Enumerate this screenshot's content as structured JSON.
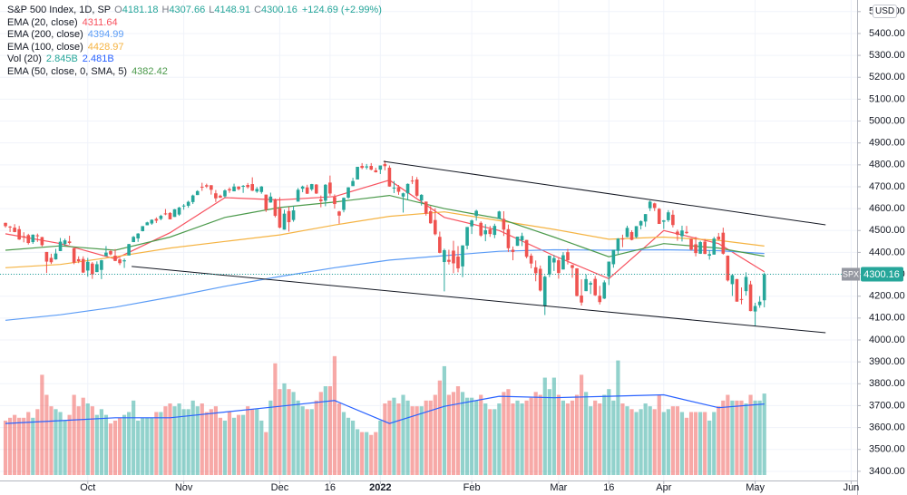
{
  "chart_data": {
    "type": "candlestick",
    "legend": {
      "title": "S&P 500 Index, 1D, SP",
      "o": "O",
      "h": "H",
      "l": "L",
      "c": "C",
      "change": "+124.69 (+2.99%)"
    },
    "symbol": "SPX",
    "currency": "USD",
    "up_color": "#26a69a",
    "down_color": "#ef5350",
    "grid": true,
    "xlim": [
      -1.2,
      186.3
    ],
    "ylim": [
      3358,
      5553
    ],
    "volume_lim": [
      0,
      5
    ],
    "xticks": [
      {
        "value": 18,
        "label": "Oct"
      },
      {
        "value": 39,
        "label": "Nov"
      },
      {
        "value": 60,
        "label": "Dec"
      },
      {
        "value": 71,
        "label": "16"
      },
      {
        "value": 82,
        "label": "2022"
      },
      {
        "value": 102,
        "label": "Feb"
      },
      {
        "value": 121,
        "label": "Mar"
      },
      {
        "value": 132,
        "label": "16"
      },
      {
        "value": 144,
        "label": "Apr"
      },
      {
        "value": 164,
        "label": "May"
      },
      {
        "value": 185,
        "label": "Jun"
      }
    ],
    "yticks": [
      {
        "value": 3400,
        "label": "3400.00"
      },
      {
        "value": 3500,
        "label": "3500.00"
      },
      {
        "value": 3600,
        "label": "3600.00"
      },
      {
        "value": 3700,
        "label": "3700.00"
      },
      {
        "value": 3800,
        "label": "3800.00"
      },
      {
        "value": 3900,
        "label": "3900.00"
      },
      {
        "value": 4000,
        "label": "4000.00"
      },
      {
        "value": 4100,
        "label": "4100.00"
      },
      {
        "value": 4200,
        "label": "4200.00"
      },
      {
        "value": 4300,
        "label": "4300.00"
      },
      {
        "value": 4400,
        "label": "4400.00"
      },
      {
        "value": 4500,
        "label": "4500.00"
      },
      {
        "value": 4600,
        "label": "4600.00"
      },
      {
        "value": 4700,
        "label": "4700.00"
      },
      {
        "value": 4800,
        "label": "4800.00"
      },
      {
        "value": 4900,
        "label": "4900.00"
      },
      {
        "value": 5000,
        "label": "5000.00"
      },
      {
        "value": 5100,
        "label": "5100.00"
      },
      {
        "value": 5200,
        "label": "5200.00"
      },
      {
        "value": 5300,
        "label": "5300.00"
      },
      {
        "value": 5400,
        "label": "5400.00"
      },
      {
        "value": 5500,
        "label": "5500.00"
      }
    ],
    "ohlc": [
      [
        4535,
        4536,
        4513,
        4520
      ],
      [
        4518,
        4521,
        4493,
        4514
      ],
      [
        4513,
        4529,
        4492,
        4493
      ],
      [
        4506,
        4521,
        4457,
        4459
      ],
      [
        4474,
        4492,
        4446,
        4469
      ],
      [
        4479,
        4485,
        4436,
        4443
      ],
      [
        4447,
        4482,
        4439,
        4481
      ],
      [
        4478,
        4486,
        4448,
        4474
      ],
      [
        4470,
        4471,
        4427,
        4433
      ],
      [
        4402,
        4402,
        4306,
        4358
      ],
      [
        4375,
        4394,
        4347,
        4355
      ],
      [
        4368,
        4416,
        4367,
        4395
      ],
      [
        4406,
        4466,
        4406,
        4449
      ],
      [
        4438,
        4463,
        4430,
        4455
      ],
      [
        4450,
        4476,
        4436,
        4443
      ],
      [
        4419,
        4419,
        4346,
        4353
      ],
      [
        4369,
        4382,
        4351,
        4360
      ],
      [
        4370,
        4382,
        4306,
        4308
      ],
      [
        4317,
        4375,
        4289,
        4357
      ],
      [
        4349,
        4356,
        4279,
        4300
      ],
      [
        4310,
        4359,
        4310,
        4346
      ],
      [
        4320,
        4366,
        4278,
        4364
      ],
      [
        4383,
        4429,
        4383,
        4399
      ],
      [
        4406,
        4412,
        4386,
        4391
      ],
      [
        4385,
        4415,
        4360,
        4361
      ],
      [
        4368,
        4375,
        4342,
        4351
      ],
      [
        4359,
        4372,
        4329,
        4364
      ],
      [
        4386,
        4439,
        4386,
        4438
      ],
      [
        4447,
        4475,
        4447,
        4471
      ],
      [
        4464,
        4488,
        4448,
        4486
      ],
      [
        4497,
        4520,
        4496,
        4520
      ],
      [
        4524,
        4540,
        4524,
        4537
      ],
      [
        4532,
        4551,
        4526,
        4549
      ],
      [
        4553,
        4560,
        4534,
        4545
      ],
      [
        4553,
        4572,
        4547,
        4567
      ],
      [
        4578,
        4598,
        4570,
        4575
      ],
      [
        4580,
        4584,
        4551,
        4551
      ],
      [
        4562,
        4598,
        4562,
        4597
      ],
      [
        4573,
        4608,
        4567,
        4605
      ],
      [
        4611,
        4621,
        4595,
        4614
      ],
      [
        4613,
        4636,
        4604,
        4631
      ],
      [
        4630,
        4664,
        4621,
        4660
      ],
      [
        4662,
        4684,
        4662,
        4680
      ],
      [
        4700,
        4718,
        4681,
        4697
      ],
      [
        4707,
        4714,
        4694,
        4701
      ],
      [
        4707,
        4707,
        4664,
        4686
      ],
      [
        4670,
        4685,
        4630,
        4647
      ],
      [
        4659,
        4664,
        4648,
        4650
      ],
      [
        4656,
        4688,
        4650,
        4683
      ],
      [
        4689,
        4697,
        4672,
        4683
      ],
      [
        4679,
        4714,
        4679,
        4701
      ],
      [
        4701,
        4702,
        4684,
        4689
      ],
      [
        4700,
        4708,
        4672,
        4704
      ],
      [
        4708,
        4717,
        4691,
        4698
      ],
      [
        4712,
        4743,
        4680,
        4682
      ],
      [
        4678,
        4699,
        4672,
        4690
      ],
      [
        4676,
        4703,
        4668,
        4701
      ],
      [
        4664,
        4664,
        4585,
        4595
      ],
      [
        4628,
        4673,
        4627,
        4655
      ],
      [
        4640,
        4646,
        4560,
        4567
      ],
      [
        4602,
        4652,
        4510,
        4513
      ],
      [
        4504,
        4595,
        4504,
        4577
      ],
      [
        4589,
        4608,
        4495,
        4538
      ],
      [
        4548,
        4612,
        4540,
        4592
      ],
      [
        4632,
        4694,
        4632,
        4686
      ],
      [
        4691,
        4705,
        4675,
        4701
      ],
      [
        4697,
        4709,
        4667,
        4668
      ],
      [
        4688,
        4713,
        4681,
        4712
      ],
      [
        4710,
        4712,
        4667,
        4669
      ],
      [
        4642,
        4660,
        4606,
        4634
      ],
      [
        4636,
        4712,
        4611,
        4709
      ],
      [
        4719,
        4751,
        4659,
        4669
      ],
      [
        4653,
        4665,
        4600,
        4621
      ],
      [
        4587,
        4590,
        4531,
        4568
      ],
      [
        4594,
        4651,
        4583,
        4649
      ],
      [
        4650,
        4698,
        4645,
        4697
      ],
      [
        4703,
        4741,
        4703,
        4726
      ],
      [
        4733,
        4791,
        4733,
        4791
      ],
      [
        4795,
        4808,
        4780,
        4786
      ],
      [
        4788,
        4804,
        4779,
        4793
      ],
      [
        4795,
        4808,
        4775,
        4778
      ],
      [
        4775,
        4787,
        4765,
        4766
      ],
      [
        4778,
        4797,
        4758,
        4797
      ],
      [
        4804,
        4819,
        4775,
        4794
      ],
      [
        4787,
        4797,
        4700,
        4701
      ],
      [
        4693,
        4726,
        4671,
        4696
      ],
      [
        4698,
        4708,
        4663,
        4677
      ],
      [
        4655,
        4673,
        4582,
        4670
      ],
      [
        4670,
        4715,
        4638,
        4713
      ],
      [
        4728,
        4749,
        4712,
        4726
      ],
      [
        4733,
        4744,
        4653,
        4659
      ],
      [
        4637,
        4666,
        4614,
        4663
      ],
      [
        4632,
        4632,
        4568,
        4577
      ],
      [
        4588,
        4612,
        4531,
        4533
      ],
      [
        4548,
        4602,
        4478,
        4483
      ],
      [
        4471,
        4495,
        4396,
        4398
      ],
      [
        4356,
        4417,
        4222,
        4410
      ],
      [
        4366,
        4412,
        4345,
        4357
      ],
      [
        4408,
        4453,
        4305,
        4350
      ],
      [
        4381,
        4429,
        4309,
        4327
      ],
      [
        4336,
        4432,
        4287,
        4432
      ],
      [
        4431,
        4516,
        4414,
        4516
      ],
      [
        4519,
        4550,
        4484,
        4546
      ],
      [
        4567,
        4595,
        4545,
        4590
      ],
      [
        4535,
        4542,
        4471,
        4477
      ],
      [
        4483,
        4529,
        4451,
        4501
      ],
      [
        4505,
        4521,
        4471,
        4484
      ],
      [
        4480,
        4531,
        4465,
        4521
      ],
      [
        4553,
        4590,
        4553,
        4587
      ],
      [
        4553,
        4588,
        4475,
        4504
      ],
      [
        4506,
        4527,
        4402,
        4419
      ],
      [
        4412,
        4427,
        4364,
        4402
      ],
      [
        4430,
        4472,
        4430,
        4472
      ],
      [
        4455,
        4490,
        4429,
        4475
      ],
      [
        4457,
        4457,
        4373,
        4380
      ],
      [
        4385,
        4395,
        4327,
        4349
      ],
      [
        4332,
        4363,
        4268,
        4305
      ],
      [
        4325,
        4340,
        4221,
        4226
      ],
      [
        4155,
        4295,
        4114,
        4289
      ],
      [
        4299,
        4385,
        4287,
        4385
      ],
      [
        4354,
        4388,
        4315,
        4374
      ],
      [
        4364,
        4375,
        4280,
        4306
      ],
      [
        4322,
        4401,
        4322,
        4387
      ],
      [
        4401,
        4416,
        4345,
        4364
      ],
      [
        4342,
        4343,
        4284,
        4329
      ],
      [
        4327,
        4328,
        4199,
        4201
      ],
      [
        4203,
        4277,
        4157,
        4171
      ],
      [
        4223,
        4299,
        4223,
        4278
      ],
      [
        4253,
        4268,
        4210,
        4260
      ],
      [
        4279,
        4292,
        4201,
        4204
      ],
      [
        4202,
        4247,
        4162,
        4173
      ],
      [
        4189,
        4272,
        4187,
        4263
      ],
      [
        4289,
        4358,
        4251,
        4358
      ],
      [
        4346,
        4412,
        4330,
        4412
      ],
      [
        4407,
        4465,
        4390,
        4463
      ],
      [
        4463,
        4481,
        4424,
        4461
      ],
      [
        4470,
        4522,
        4469,
        4512
      ],
      [
        4493,
        4501,
        4455,
        4457
      ],
      [
        4470,
        4520,
        4465,
        4520
      ],
      [
        4523,
        4546,
        4505,
        4543
      ],
      [
        4541,
        4575,
        4517,
        4575
      ],
      [
        4602,
        4637,
        4589,
        4632
      ],
      [
        4624,
        4627,
        4589,
        4603
      ],
      [
        4599,
        4603,
        4530,
        4530
      ],
      [
        4540,
        4548,
        4507,
        4546
      ],
      [
        4547,
        4593,
        4539,
        4583
      ],
      [
        4572,
        4593,
        4514,
        4525
      ],
      [
        4495,
        4504,
        4453,
        4481
      ],
      [
        4474,
        4522,
        4450,
        4500
      ],
      [
        4494,
        4521,
        4484,
        4488
      ],
      [
        4462,
        4464,
        4408,
        4413
      ],
      [
        4437,
        4471,
        4382,
        4397
      ],
      [
        4394,
        4453,
        4393,
        4447
      ],
      [
        4449,
        4461,
        4392,
        4393
      ],
      [
        4385,
        4410,
        4367,
        4392
      ],
      [
        4390,
        4471,
        4390,
        4463
      ],
      [
        4472,
        4489,
        4455,
        4459
      ],
      [
        4490,
        4513,
        4390,
        4394
      ],
      [
        4385,
        4386,
        4267,
        4272
      ],
      [
        4255,
        4299,
        4201,
        4296
      ],
      [
        4278,
        4279,
        4175,
        4175
      ],
      [
        4187,
        4240,
        4163,
        4184
      ],
      [
        4223,
        4309,
        4203,
        4288
      ],
      [
        4254,
        4270,
        4131,
        4132
      ],
      [
        4130,
        4170,
        4063,
        4155
      ],
      [
        4159,
        4200,
        4147,
        4175
      ],
      [
        4181.18,
        4307.66,
        4148.91,
        4300.16
      ]
    ],
    "volume": [
      1.9,
      2.0,
      2.1,
      2.0,
      2.0,
      2.2,
      2.0,
      2.3,
      3.5,
      2.8,
      2.4,
      2.3,
      2.2,
      1.9,
      2.1,
      2.8,
      2.4,
      2.7,
      2.5,
      2.4,
      2.1,
      2.3,
      2.1,
      1.8,
      1.9,
      2.0,
      2.1,
      2.2,
      2.6,
      1.9,
      2.0,
      2.0,
      2.0,
      2.2,
      2.2,
      2.4,
      2.5,
      2.4,
      2.5,
      2.3,
      2.3,
      2.6,
      2.4,
      2.5,
      2.2,
      2.3,
      2.4,
      2.0,
      1.9,
      2.2,
      2.0,
      2.1,
      2.1,
      2.4,
      2.3,
      2.3,
      1.9,
      1.5,
      2.6,
      3.9,
      3.0,
      3.2,
      3.0,
      2.9,
      2.6,
      2.4,
      2.3,
      2.3,
      2.6,
      2.9,
      3.1,
      3.1,
      4.15,
      2.5,
      2.2,
      2.0,
      1.9,
      1.6,
      1.5,
      1.5,
      1.4,
      1.5,
      1.9,
      2.5,
      2.6,
      2.7,
      2.5,
      2.8,
      2.6,
      2.4,
      2.4,
      2.4,
      2.6,
      2.6,
      2.8,
      3.3,
      3.8,
      2.8,
      2.9,
      3.1,
      2.9,
      2.7,
      2.7,
      2.6,
      2.8,
      2.5,
      2.3,
      2.3,
      2.5,
      2.9,
      3.0,
      2.5,
      2.6,
      2.5,
      2.6,
      2.7,
      2.9,
      2.8,
      3.4,
      3.0,
      3.4,
      2.8,
      2.6,
      2.5,
      2.6,
      2.8,
      3.5,
      2.9,
      2.4,
      2.6,
      2.5,
      2.8,
      3.0,
      2.6,
      4.0,
      2.5,
      2.4,
      2.3,
      2.2,
      2.3,
      2.5,
      2.4,
      2.3,
      2.8,
      2.2,
      2.3,
      2.4,
      2.4,
      2.2,
      2.0,
      2.2,
      2.2,
      2.2,
      2.2,
      1.9,
      2.2,
      2.4,
      2.6,
      2.8,
      2.6,
      2.6,
      2.6,
      2.5,
      2.8,
      2.6,
      2.6,
      2.845
    ],
    "volume_label": "2.845B",
    "indicators": [
      {
        "name": "EMA (20, close)",
        "color": "#f7525f",
        "x": [
          0,
          12,
          24,
          36,
          48,
          60,
          72,
          84,
          96,
          108,
          120,
          132,
          144,
          156,
          166
        ],
        "values": [
          4485,
          4440,
          4370,
          4490,
          4650,
          4640,
          4655,
          4730,
          4560,
          4500,
          4385,
          4280,
          4500,
          4440,
          4311.64
        ]
      },
      {
        "name": "EMA (200, close)",
        "color": "#5b9cf6",
        "x": [
          0,
          12,
          24,
          36,
          48,
          60,
          72,
          84,
          96,
          108,
          120,
          132,
          144,
          156,
          166
        ],
        "values": [
          4090,
          4115,
          4150,
          4195,
          4245,
          4290,
          4330,
          4365,
          4385,
          4405,
          4412,
          4410,
          4412,
          4408,
          4394.99
        ]
      },
      {
        "name": "EMA (100, close)",
        "color": "#f5b342",
        "x": [
          0,
          12,
          24,
          36,
          48,
          60,
          72,
          84,
          96,
          108,
          120,
          132,
          144,
          156,
          166
        ],
        "values": [
          4330,
          4345,
          4380,
          4420,
          4450,
          4480,
          4525,
          4565,
          4585,
          4545,
          4505,
          4460,
          4470,
          4455,
          4428.97
        ]
      },
      {
        "name": "EMA (50, close, 0, SMA, 5)",
        "color": "#4c9a4c",
        "x": [
          0,
          12,
          24,
          36,
          48,
          60,
          72,
          84,
          96,
          108,
          120,
          132,
          144,
          156,
          166
        ],
        "values": [
          4410,
          4430,
          4410,
          4470,
          4560,
          4605,
          4630,
          4660,
          4600,
          4555,
          4470,
          4380,
          4440,
          4420,
          4382.42
        ]
      }
    ],
    "vol_ma": {
      "name": "Vol (20)",
      "color": "#2962ff",
      "x": [
        0,
        12,
        24,
        36,
        48,
        60,
        72,
        84,
        96,
        108,
        120,
        132,
        144,
        156,
        166
      ],
      "values": [
        1.8,
        1.9,
        2.0,
        2.0,
        2.2,
        2.4,
        2.6,
        1.8,
        2.4,
        2.75,
        2.7,
        2.75,
        2.8,
        2.35,
        2.481
      ],
      "label": "2.481B"
    },
    "trendlines": [
      {
        "color": "#131722",
        "x": [
          82.7,
          179.4
        ],
        "values": [
          4816,
          4526
        ]
      },
      {
        "color": "#131722",
        "x": [
          27.6,
          179.4
        ],
        "values": [
          4336,
          4033
        ]
      }
    ]
  }
}
